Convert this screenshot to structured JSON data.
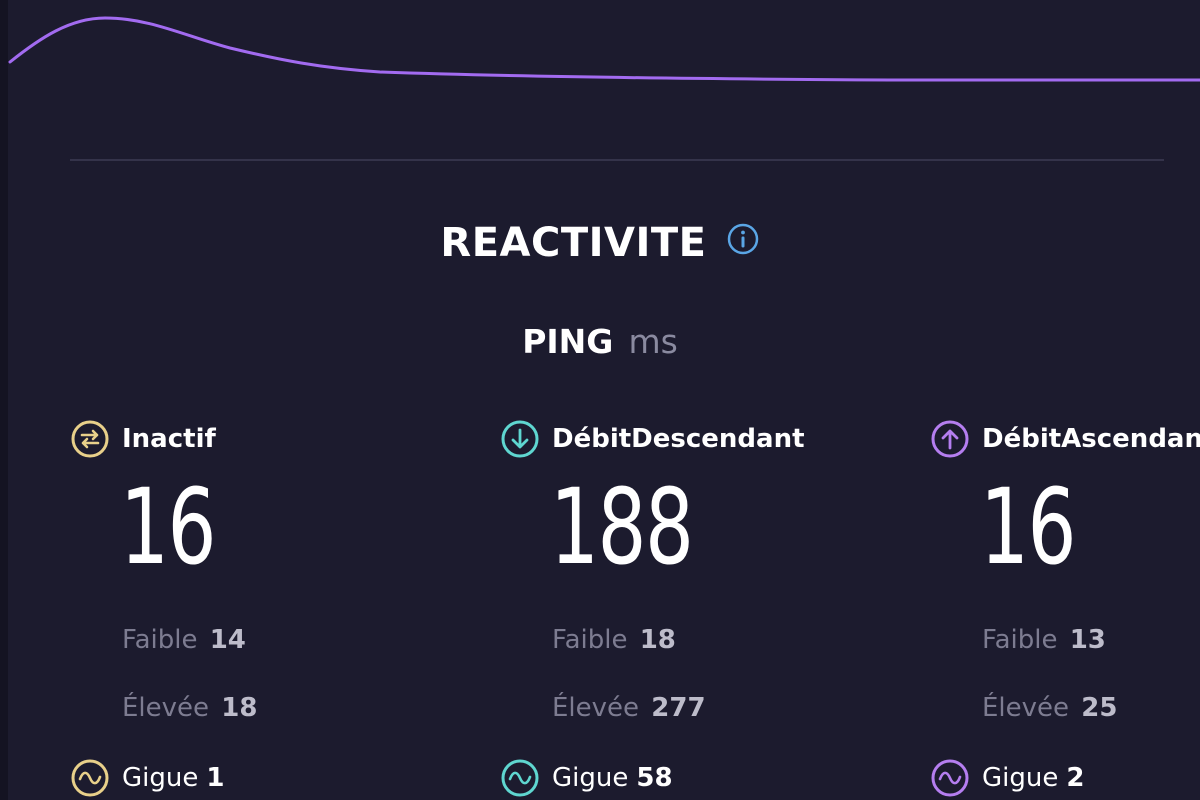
{
  "responsiveness": {
    "title": "REACTIVITE",
    "ping_label": "PING",
    "ping_unit": "ms"
  },
  "colors": {
    "idle": "#e8d08a",
    "download": "#5fd6d0",
    "upload": "#b57ef0",
    "graph_line": "#a26bf0"
  },
  "columns": [
    {
      "key": "idle",
      "title": "Inactif",
      "icon": "exchange-icon",
      "value": "16",
      "low_label": "Faible",
      "low_value": "14",
      "high_label": "Élevée",
      "high_value": "18",
      "jitter_label": "Gigue",
      "jitter_value": "1"
    },
    {
      "key": "download",
      "title": "DébitDescendant",
      "icon": "download-arrow-icon",
      "value": "188",
      "low_label": "Faible",
      "low_value": "18",
      "high_label": "Élevée",
      "high_value": "277",
      "jitter_label": "Gigue",
      "jitter_value": "58"
    },
    {
      "key": "upload",
      "title": "DébitAscendan",
      "icon": "upload-arrow-icon",
      "value": "16",
      "low_label": "Faible",
      "low_value": "13",
      "high_label": "Élevée",
      "high_value": "25",
      "jitter_label": "Gigue",
      "jitter_value": "2"
    }
  ]
}
